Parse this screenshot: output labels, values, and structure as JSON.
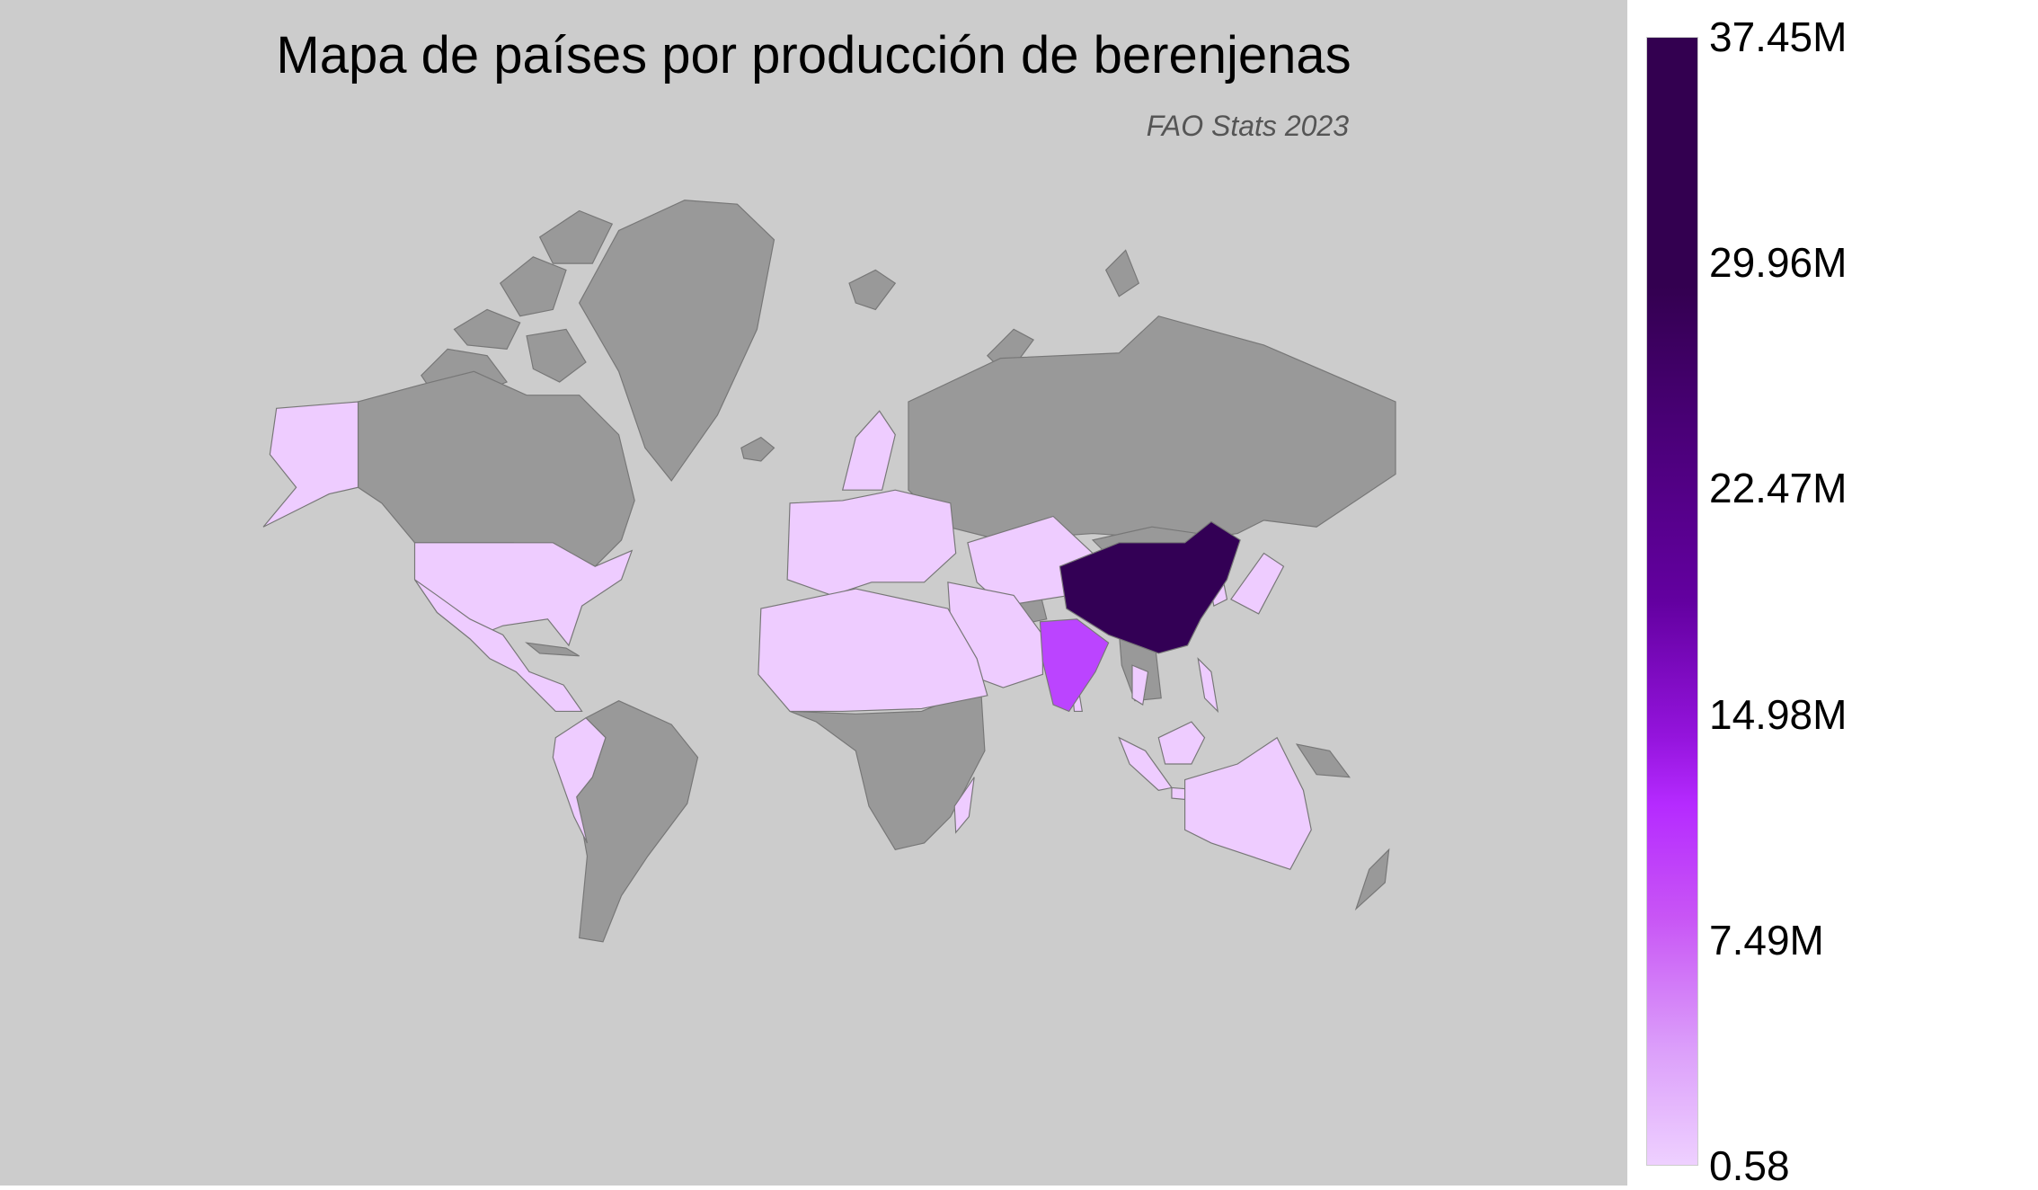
{
  "chart_data": {
    "type": "choropleth",
    "title": "Mapa de países por producción de berenjenas",
    "subtitle": "FAO Stats 2023",
    "projection": "mercator",
    "colorbar": {
      "min": 0.58,
      "max": 37450000,
      "tick_labels": [
        "37.45M",
        "29.96M",
        "22.47M",
        "14.98M",
        "7.49M",
        "0.58"
      ],
      "colors": [
        "#eeccff",
        "#bb44ff",
        "#6a00a8",
        "#330055"
      ],
      "orientation": "vertical",
      "placement": "right"
    },
    "highlighted": [
      {
        "country": "China",
        "color": "#330055"
      },
      {
        "country": "India",
        "color": "#bb44ff"
      }
    ],
    "colors": {
      "background": "#cccccc",
      "no_data": "#999999",
      "low_value": "#eeccff",
      "border": "#777777"
    }
  }
}
